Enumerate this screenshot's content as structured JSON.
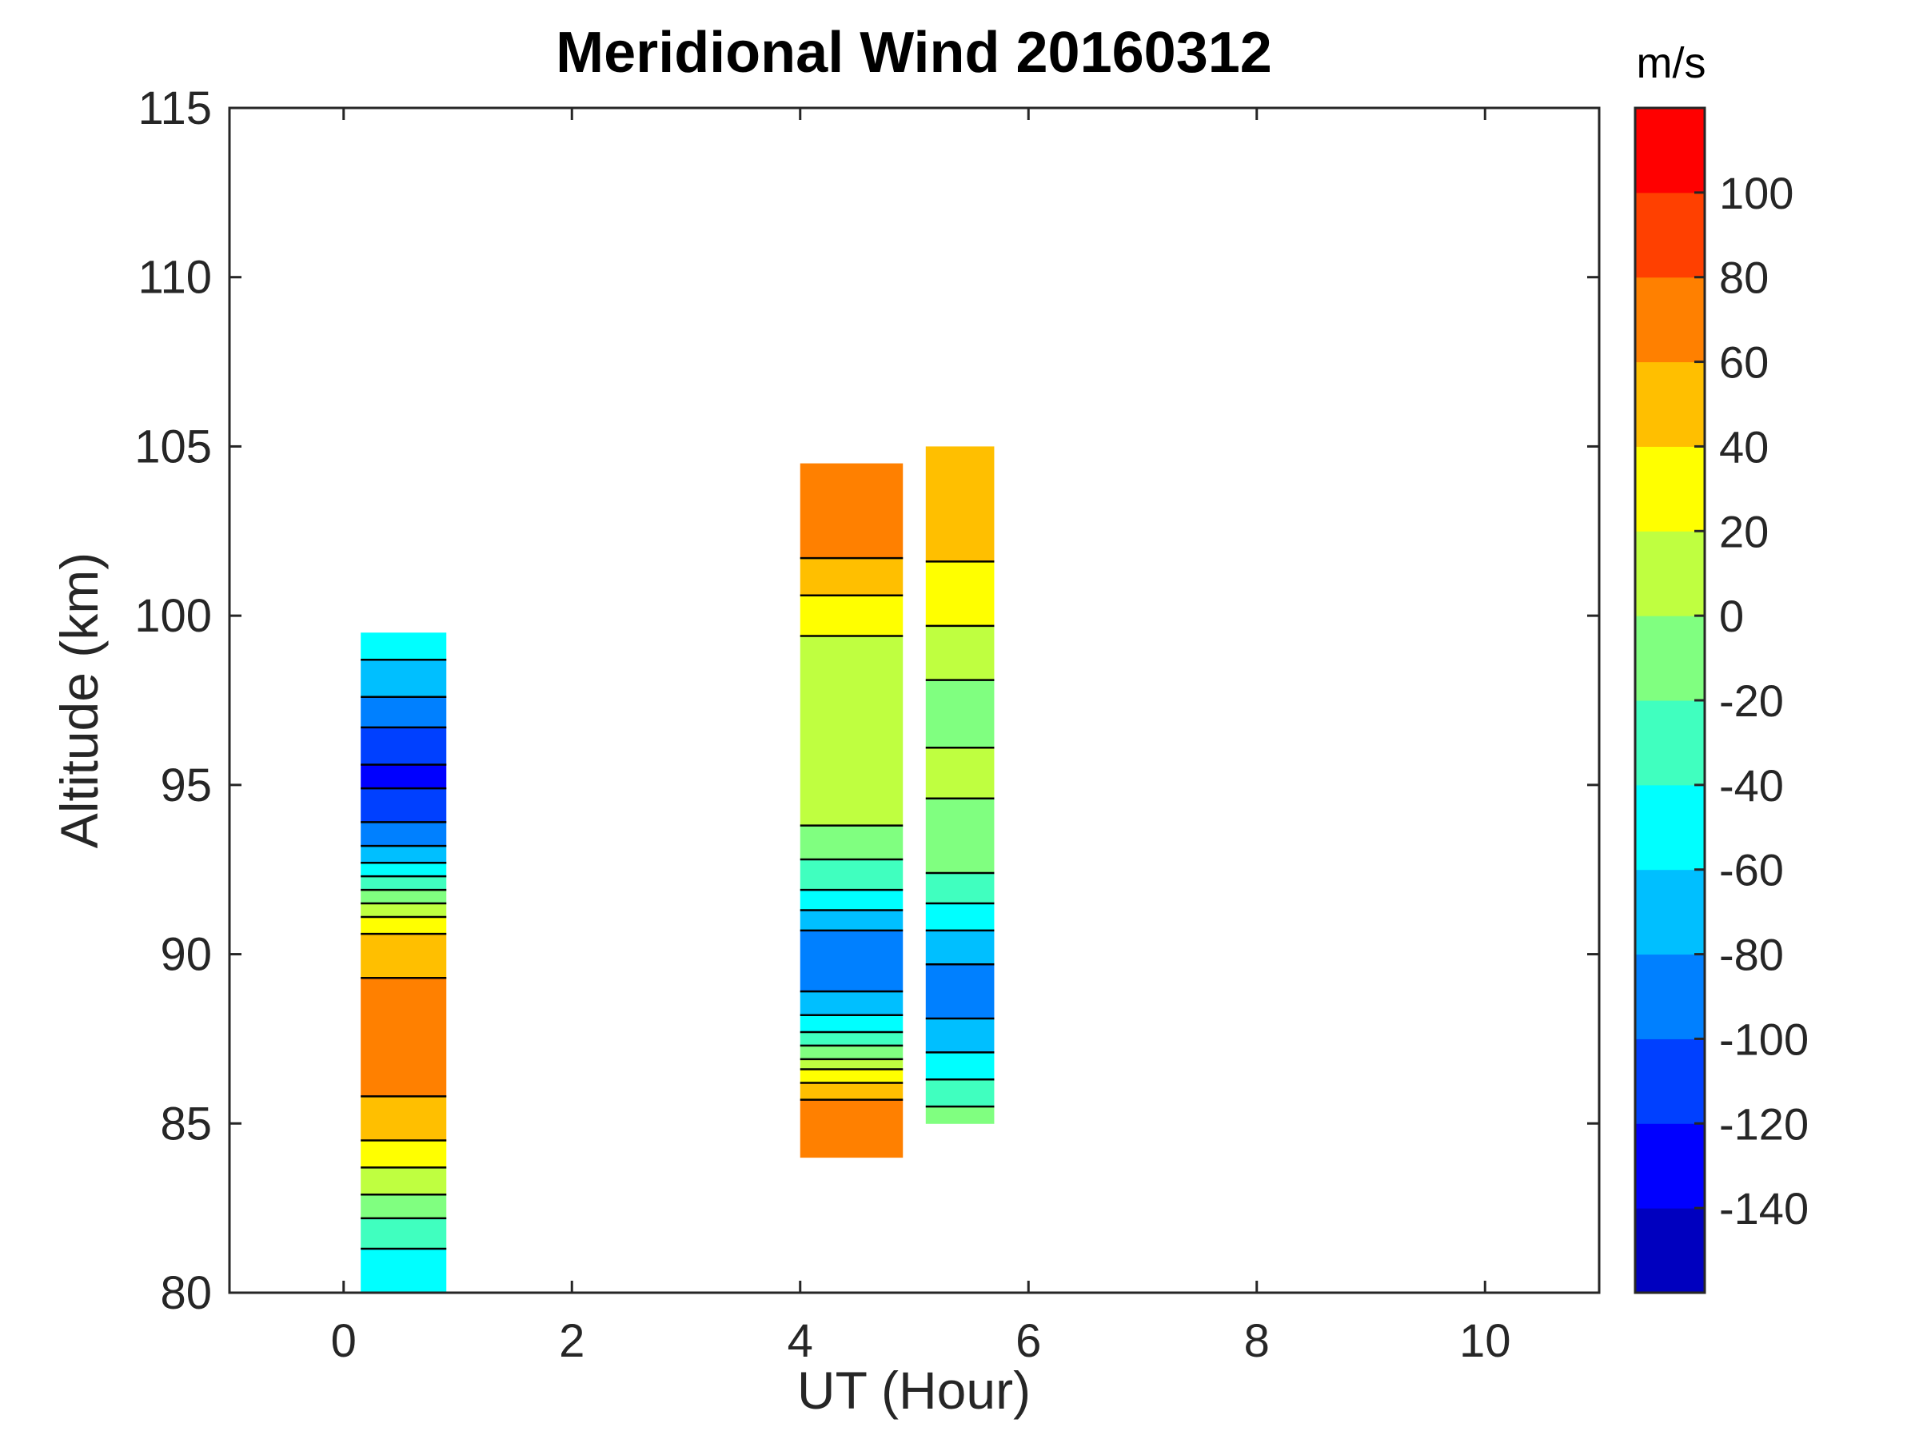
{
  "chart_data": {
    "type": "heatmap",
    "subtype": "filled-contour",
    "title": "Meridional Wind 20160312",
    "xlabel": "UT (Hour)",
    "ylabel": "Altitude (km)",
    "xlim": [
      -1,
      11
    ],
    "ylim": [
      80,
      115
    ],
    "xticks": [
      0,
      2,
      4,
      6,
      8,
      10
    ],
    "yticks": [
      80,
      85,
      90,
      95,
      100,
      105,
      110,
      115
    ],
    "grid": false,
    "colorbar": {
      "label": "m/s",
      "range": [
        -160,
        120
      ],
      "ticks": [
        100,
        80,
        60,
        40,
        20,
        0,
        -20,
        -40,
        -60,
        -80,
        -100,
        -120,
        -140
      ],
      "levels": [
        {
          "lo": -160,
          "hi": -140,
          "color": "#0000BF"
        },
        {
          "lo": -140,
          "hi": -120,
          "color": "#0000FF"
        },
        {
          "lo": -120,
          "hi": -100,
          "color": "#0040FF"
        },
        {
          "lo": -100,
          "hi": -80,
          "color": "#0080FF"
        },
        {
          "lo": -80,
          "hi": -60,
          "color": "#00BFFF"
        },
        {
          "lo": -60,
          "hi": -40,
          "color": "#00FFFF"
        },
        {
          "lo": -40,
          "hi": -20,
          "color": "#40FFBF"
        },
        {
          "lo": -20,
          "hi": 0,
          "color": "#80FF80"
        },
        {
          "lo": 0,
          "hi": 20,
          "color": "#BFFF40"
        },
        {
          "lo": 20,
          "hi": 40,
          "color": "#FFFF00"
        },
        {
          "lo": 40,
          "hi": 60,
          "color": "#FFBF00"
        },
        {
          "lo": 60,
          "hi": 80,
          "color": "#FF8000"
        },
        {
          "lo": 80,
          "hi": 100,
          "color": "#FF4000"
        },
        {
          "lo": 100,
          "hi": 120,
          "color": "#FF0000"
        }
      ]
    },
    "segments": [
      {
        "ut_range": [
          0.15,
          0.9
        ],
        "alt_range": [
          80.0,
          99.5
        ],
        "profile": [
          {
            "alt": 80.0,
            "v": -55
          },
          {
            "alt": 81.0,
            "v": -45
          },
          {
            "alt": 82.0,
            "v": -25
          },
          {
            "alt": 83.0,
            "v": 5
          },
          {
            "alt": 84.0,
            "v": 30
          },
          {
            "alt": 85.0,
            "v": 55
          },
          {
            "alt": 86.0,
            "v": 62
          },
          {
            "alt": 87.0,
            "v": 68
          },
          {
            "alt": 88.0,
            "v": 60
          },
          {
            "alt": 89.0,
            "v": 62
          },
          {
            "alt": 90.0,
            "v": 55
          },
          {
            "alt": 91.0,
            "v": 25
          },
          {
            "alt": 92.0,
            "v": -30
          },
          {
            "alt": 93.0,
            "v": -75
          },
          {
            "alt": 94.0,
            "v": -105
          },
          {
            "alt": 95.0,
            "v": -122
          },
          {
            "alt": 96.0,
            "v": -118
          },
          {
            "alt": 97.0,
            "v": -90
          },
          {
            "alt": 98.0,
            "v": -70
          },
          {
            "alt": 99.0,
            "v": -55
          },
          {
            "alt": 99.5,
            "v": -50
          }
        ]
      },
      {
        "ut_range": [
          4.0,
          4.9
        ],
        "alt_range": [
          84.0,
          104.5
        ],
        "profile": [
          {
            "alt": 84.0,
            "v": 70
          },
          {
            "alt": 85.0,
            "v": 80
          },
          {
            "alt": 86.0,
            "v": 50
          },
          {
            "alt": 87.0,
            "v": -10
          },
          {
            "alt": 88.0,
            "v": -55
          },
          {
            "alt": 89.0,
            "v": -85
          },
          {
            "alt": 90.0,
            "v": -100
          },
          {
            "alt": 91.0,
            "v": -70
          },
          {
            "alt": 92.0,
            "v": -35
          },
          {
            "alt": 93.0,
            "v": -15
          },
          {
            "alt": 94.0,
            "v": 5
          },
          {
            "alt": 95.0,
            "v": 10
          },
          {
            "alt": 96.0,
            "v": 5
          },
          {
            "alt": 97.0,
            "v": 0
          },
          {
            "alt": 98.0,
            "v": 5
          },
          {
            "alt": 99.0,
            "v": 15
          },
          {
            "alt": 100.0,
            "v": 30
          },
          {
            "alt": 101.0,
            "v": 50
          },
          {
            "alt": 102.0,
            "v": 65
          },
          {
            "alt": 103.0,
            "v": 78
          },
          {
            "alt": 104.0,
            "v": 70
          },
          {
            "alt": 104.5,
            "v": 65
          }
        ]
      },
      {
        "ut_range": [
          5.1,
          5.7
        ],
        "alt_range": [
          85.0,
          105.0
        ],
        "profile": [
          {
            "alt": 85.0,
            "v": -10
          },
          {
            "alt": 86.0,
            "v": -35
          },
          {
            "alt": 87.0,
            "v": -60
          },
          {
            "alt": 88.0,
            "v": -80
          },
          {
            "alt": 89.0,
            "v": -90
          },
          {
            "alt": 90.0,
            "v": -75
          },
          {
            "alt": 91.0,
            "v": -50
          },
          {
            "alt": 92.0,
            "v": -25
          },
          {
            "alt": 93.0,
            "v": -12
          },
          {
            "alt": 94.0,
            "v": -5
          },
          {
            "alt": 95.0,
            "v": 5
          },
          {
            "alt": 96.0,
            "v": 0
          },
          {
            "alt": 97.0,
            "v": -5
          },
          {
            "alt": 98.0,
            "v": 0
          },
          {
            "alt": 99.0,
            "v": 10
          },
          {
            "alt": 100.0,
            "v": 25
          },
          {
            "alt": 101.0,
            "v": 35
          },
          {
            "alt": 102.0,
            "v": 45
          },
          {
            "alt": 103.0,
            "v": 60
          },
          {
            "alt": 104.0,
            "v": 55
          },
          {
            "alt": 105.0,
            "v": 45
          }
        ]
      }
    ]
  }
}
